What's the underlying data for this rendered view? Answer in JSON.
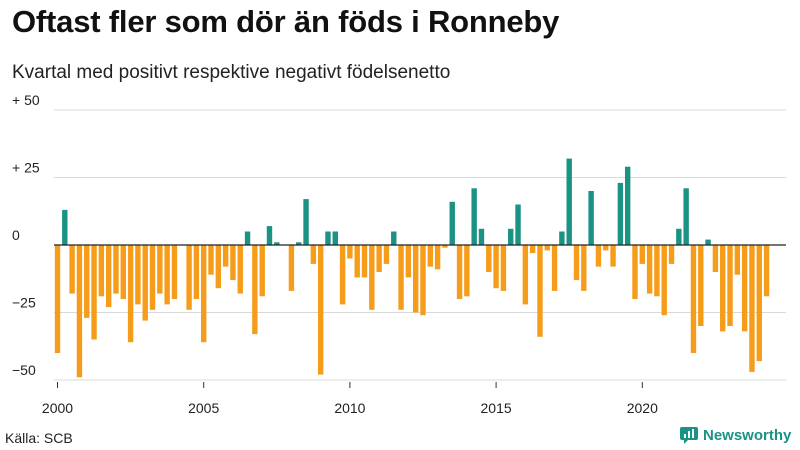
{
  "header": {
    "title": "Oftast fler som dör än föds i Ronneby",
    "subtitle": "Kvartal med positivt respektive negativt födelsenetto"
  },
  "footer": {
    "source": "Källa: SCB",
    "brand": "Newsworthy"
  },
  "colors": {
    "positive": "#1a9284",
    "negative": "#f59d1a",
    "brand": "#1a9284"
  },
  "chart_data": {
    "type": "bar",
    "title": "Oftast fler som dör än föds i Ronneby",
    "subtitle": "Kvartal med positivt respektive negativt födelsenetto",
    "xlabel": "",
    "ylabel": "",
    "ylim": [
      -50,
      50
    ],
    "y_ticks": [
      {
        "value": 50,
        "label": "+ 50"
      },
      {
        "value": 25,
        "label": "+ 25"
      },
      {
        "value": 0,
        "label": "0"
      },
      {
        "value": -25,
        "label": "−25"
      },
      {
        "value": -50,
        "label": "−50"
      }
    ],
    "x_ticks": [
      {
        "label": "2000",
        "quarter_index": 0
      },
      {
        "label": "2005",
        "quarter_index": 20
      },
      {
        "label": "2010",
        "quarter_index": 40
      },
      {
        "label": "2015",
        "quarter_index": 60
      },
      {
        "label": "2020",
        "quarter_index": 80
      }
    ],
    "start": "2000 Q1",
    "frequency": "quarterly",
    "values": [
      -40,
      13,
      -18,
      -49,
      -27,
      -35,
      -19,
      -23,
      -18,
      -20,
      -36,
      -22,
      -28,
      -24,
      -18,
      -22,
      -20,
      0,
      -24,
      -20,
      -36,
      -11,
      -16,
      -8,
      -13,
      -18,
      5,
      -33,
      -19,
      7,
      1,
      0,
      -17,
      1,
      17,
      -7,
      -48,
      5,
      5,
      -22,
      -5,
      -12,
      -12,
      -24,
      -10,
      -7,
      5,
      -24,
      -12,
      -25,
      -26,
      -8,
      -9,
      -1,
      16,
      -20,
      -19,
      21,
      6,
      -10,
      -16,
      -17,
      6,
      15,
      -22,
      -3,
      -34,
      -2,
      -17,
      5,
      32,
      -13,
      -17,
      20,
      -8,
      -2,
      -8,
      23,
      29,
      -20,
      -7,
      -18,
      -19,
      -26,
      -7,
      6,
      21,
      -40,
      -30,
      2,
      -10,
      -32,
      -30,
      -11,
      -32,
      -47,
      -43,
      -19
    ]
  }
}
